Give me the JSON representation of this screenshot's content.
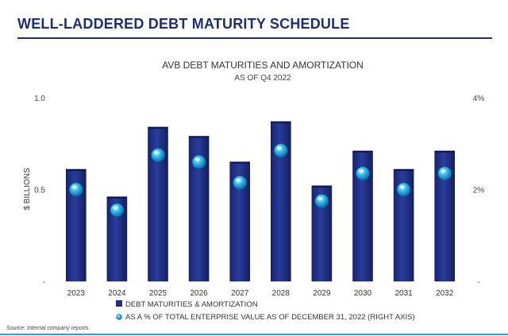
{
  "page": {
    "title": "WELL-LADDERED DEBT MATURITY SCHEDULE",
    "source": "Source:  Internal company reports."
  },
  "chart_data": {
    "type": "bar",
    "title": "AVB DEBT MATURITIES AND AMORTIZATION",
    "subtitle": "AS OF Q4 2022",
    "ylabel": "$ BILLIONS",
    "categories": [
      "2023",
      "2024",
      "2025",
      "2026",
      "2027",
      "2028",
      "2029",
      "2030",
      "2031",
      "2032"
    ],
    "ylim": [
      0,
      1.0
    ],
    "yticks": [
      {
        "value": 0,
        "label": "-"
      },
      {
        "value": 0.5,
        "label": "0.5"
      },
      {
        "value": 1.0,
        "label": "1.0"
      }
    ],
    "y2lim": [
      0,
      4
    ],
    "y2ticks": [
      {
        "value": 0,
        "label": "-"
      },
      {
        "value": 2,
        "label": "2%"
      },
      {
        "value": 4,
        "label": "4%"
      }
    ],
    "series": [
      {
        "name": "DEBT MATURITIES & AMORTIZATION",
        "kind": "bar",
        "axis": "left",
        "color": "#1f2e84",
        "values": [
          0.61,
          0.46,
          0.84,
          0.79,
          0.65,
          0.87,
          0.52,
          0.71,
          0.61,
          0.71
        ]
      },
      {
        "name": "AS A % OF TOTAL ENTERPRISE VALUE AS OF DECEMBER 31, 2022 (RIGHT AXIS)",
        "kind": "marker",
        "axis": "right",
        "color": "#2aa8e0",
        "values": [
          2.0,
          1.55,
          2.75,
          2.6,
          2.15,
          2.85,
          1.75,
          2.35,
          2.0,
          2.35
        ]
      }
    ],
    "grid": false,
    "legend": "bottom"
  }
}
